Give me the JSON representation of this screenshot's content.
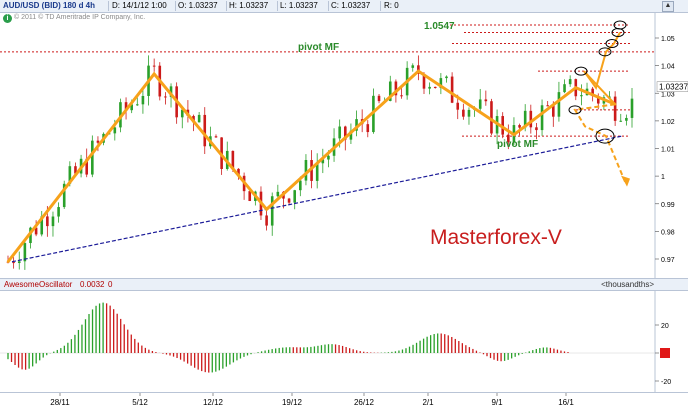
{
  "header": {
    "symbol": "AUD/USD (BID) 180 d 4h",
    "date": "D: 14/1/12 1:00",
    "open": "O: 1.03237",
    "high": "H: 1.03237",
    "low": "L: 1.03237",
    "close": "C: 1.03237",
    "r": "R: 0",
    "copyright": "© 2011 © TD Ameritrade IP Company, Inc."
  },
  "oscillator_header": {
    "name": "AwesomeOscillator",
    "value": "0.0032",
    "value2": "0",
    "unit": "<thousandths>"
  },
  "annotations": {
    "watermark": "Masterforex-V",
    "pivot_top": "pivot MF",
    "pivot_bottom": "pivot MF",
    "target": "1.0547",
    "last_price": "1.03237"
  },
  "colors": {
    "bull": "#2aa02a",
    "bear": "#cc1a1a",
    "trend": "#f7a21b",
    "trendline": "#1c1c99",
    "pivot": "#cc1a1a",
    "watermark": "#c81e1e",
    "label_green": "#2a8a2a"
  },
  "chart_data": [
    {
      "type": "candlestick",
      "title": "AUD/USD (BID) 180 d 4h",
      "ylim": [
        0.965,
        1.06
      ],
      "y_ticks": [
        0.97,
        0.98,
        0.99,
        1,
        1.01,
        1.02,
        1.03,
        1.04,
        1.05
      ],
      "y_tick_labels": [
        "0.97",
        "0.98",
        "0.99",
        "1",
        "1.01",
        "1.02",
        "1.03",
        "1.04",
        "1.05"
      ],
      "x_tick_labels": [
        "28/11",
        "5/12",
        "12/12",
        "19/12",
        "26/12",
        "2/1",
        "9/1",
        "16/1"
      ],
      "zigzag": [
        {
          "i": 0,
          "v": 0.969
        },
        {
          "i": 26,
          "v": 1.037
        },
        {
          "i": 46,
          "v": 0.988
        },
        {
          "i": 73,
          "v": 1.038
        },
        {
          "i": 90,
          "v": 1.015
        },
        {
          "i": 101,
          "v": 1.032
        },
        {
          "i": 108,
          "v": 1.026
        }
      ],
      "last_close": 1.03237,
      "target": 1.0547,
      "pivot_levels": [
        1.045,
        1.0145
      ],
      "dotted_levels": [
        1.0547,
        1.052,
        1.048,
        1.045,
        1.038,
        1.024,
        1.0145
      ]
    },
    {
      "type": "histogram",
      "title": "AwesomeOscillator",
      "ylim": [
        -20,
        30
      ],
      "y_ticks": [
        -20,
        0,
        20
      ],
      "y_tick_labels": [
        "-20",
        "0",
        "20"
      ],
      "current": 0.0032
    }
  ]
}
